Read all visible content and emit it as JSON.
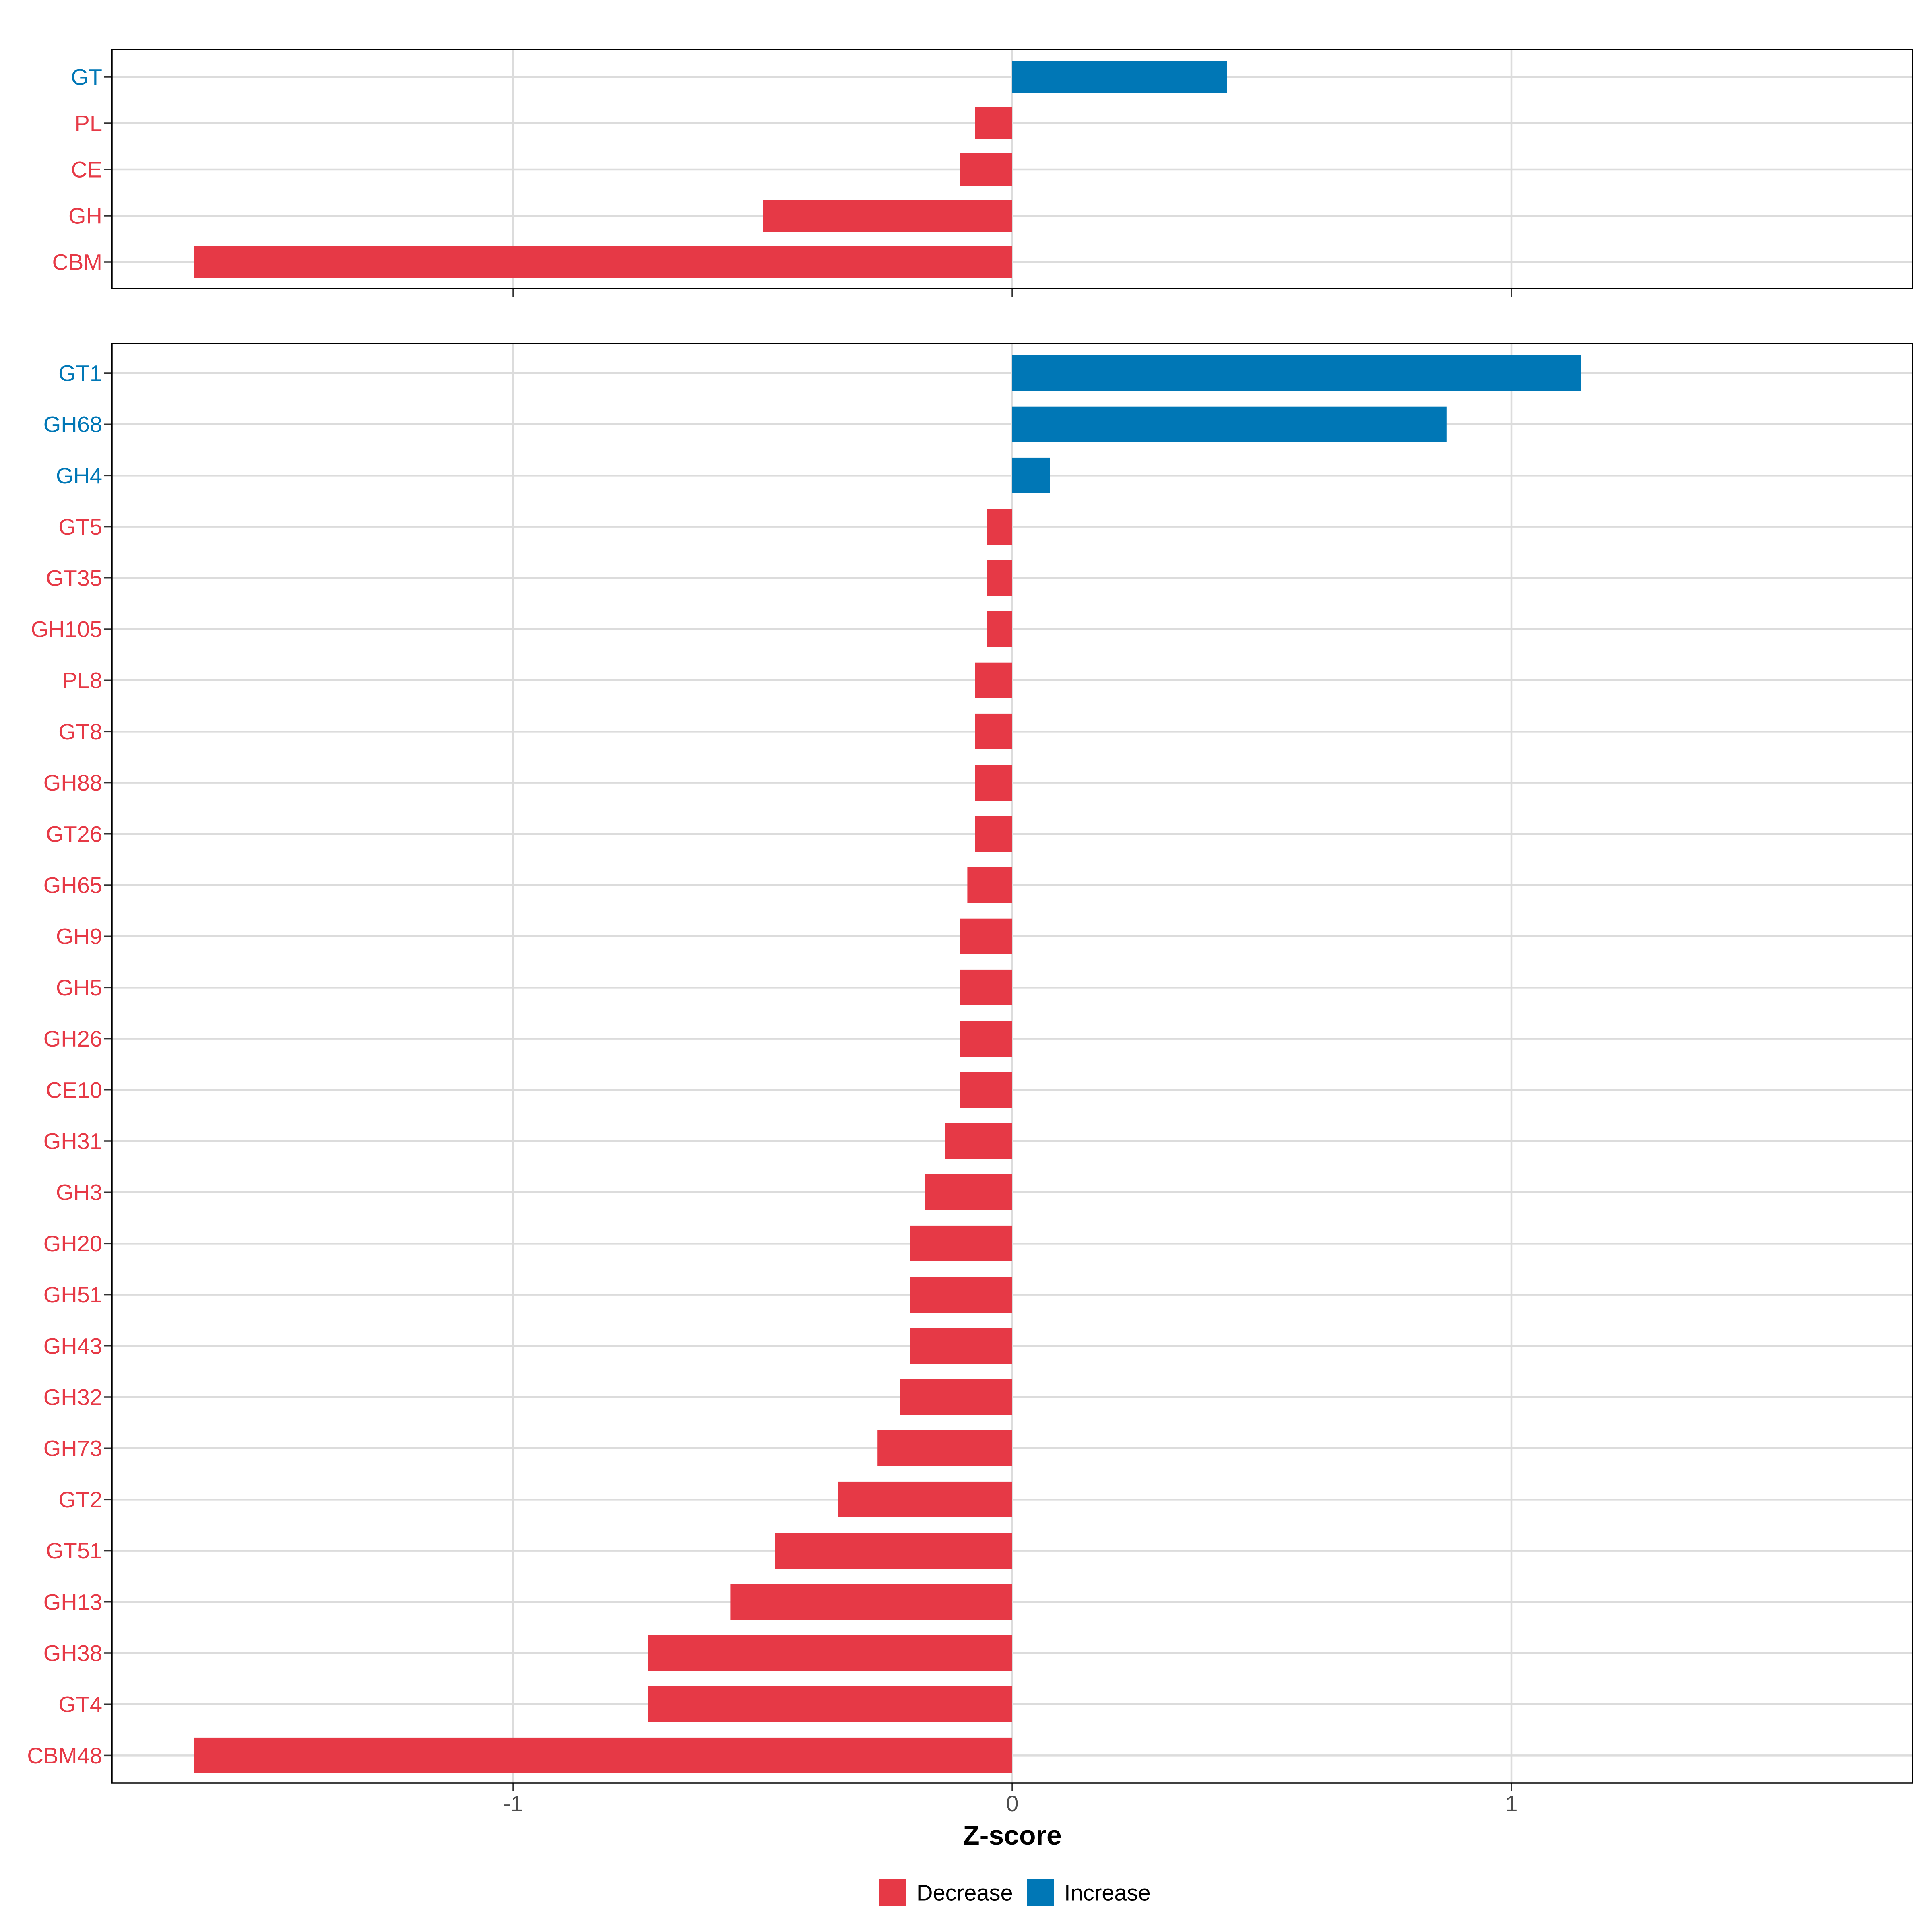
{
  "chart_data": {
    "type": "bar",
    "orientation": "horizontal",
    "xlabel": "Z-score",
    "xlim": [
      -1.8,
      1.8
    ],
    "xticks": [
      -1,
      0,
      1
    ],
    "grid": true,
    "legend_position": "bottom",
    "colors": {
      "Decrease": "#e63946",
      "Increase": "#0077b6"
    },
    "legend": [
      {
        "label": "Decrease",
        "color": "#e63946"
      },
      {
        "label": "Increase",
        "color": "#0077b6"
      }
    ],
    "panels": [
      {
        "categories": [
          "GT",
          "PL",
          "CE",
          "GH",
          "CBM"
        ],
        "values": [
          0.43,
          -0.075,
          -0.105,
          -0.5,
          -1.64
        ]
      },
      {
        "categories": [
          "GT1",
          "GH68",
          "GH4",
          "GT5",
          "GT35",
          "GH105",
          "PL8",
          "GT8",
          "GH88",
          "GT26",
          "GH65",
          "GH9",
          "GH5",
          "GH26",
          "CE10",
          "GH31",
          "GH3",
          "GH20",
          "GH51",
          "GH43",
          "GH32",
          "GH73",
          "GT2",
          "GT51",
          "GH13",
          "GH38",
          "GT4",
          "CBM48"
        ],
        "values": [
          1.14,
          0.87,
          0.075,
          -0.05,
          -0.05,
          -0.05,
          -0.075,
          -0.075,
          -0.075,
          -0.075,
          -0.09,
          -0.105,
          -0.105,
          -0.105,
          -0.105,
          -0.135,
          -0.175,
          -0.205,
          -0.205,
          -0.205,
          -0.225,
          -0.27,
          -0.35,
          -0.475,
          -0.565,
          -0.73,
          -0.73,
          -1.64
        ]
      }
    ]
  }
}
